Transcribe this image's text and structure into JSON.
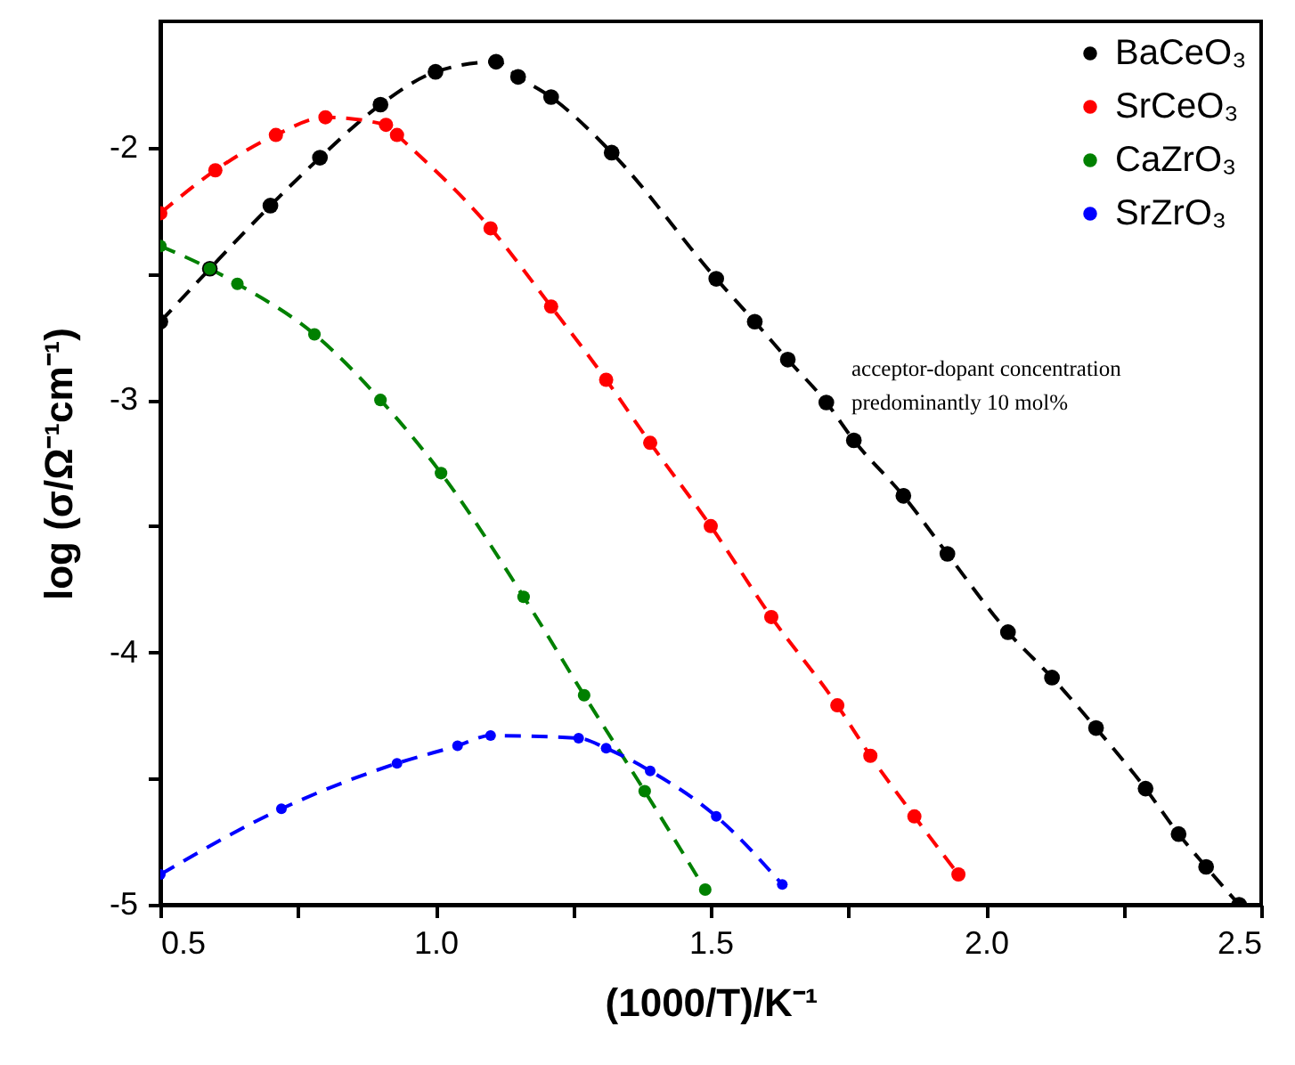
{
  "chart_data": {
    "type": "line",
    "xlabel": "(1000/T)/K⁻¹",
    "ylabel": "log (σ/Ω⁻¹cm⁻¹)",
    "xlim": [
      0.5,
      2.5
    ],
    "ylim": [
      -5,
      -1.5
    ],
    "xticks": [
      0.5,
      {
        "value": 0.75,
        "label": null
      },
      {
        "value": 1,
        "label": "1.0"
      },
      {
        "value": 1.25,
        "label": null
      },
      1.5,
      {
        "value": 1.75,
        "label": null
      },
      {
        "value": 2,
        "label": "2.0"
      },
      {
        "value": 2.25,
        "label": null
      },
      2.5
    ],
    "yticks": [
      -5,
      {
        "value": -4.5,
        "label": null
      },
      -4,
      {
        "value": -3.5,
        "label": null
      },
      -3,
      {
        "value": -2.5,
        "label": null
      },
      -2
    ],
    "marker": "circle",
    "line_style": "dashed",
    "legend": "top right",
    "grid": false,
    "annotations": [
      "acceptor-dopant concentration",
      "predominantly 10 mol%"
    ],
    "series": [
      {
        "name": "BaCeO₃",
        "color": "#000000",
        "x": [
          0.5,
          0.59,
          0.7,
          0.79,
          0.9,
          1.0,
          1.11,
          1.15,
          1.21,
          1.32,
          1.51,
          1.58,
          1.64,
          1.71,
          1.76,
          1.85,
          1.93,
          2.04,
          2.12,
          2.2,
          2.29,
          2.35,
          2.4,
          2.46
        ],
        "values": [
          -2.69,
          -2.48,
          -2.23,
          -2.04,
          -1.83,
          -1.7,
          -1.66,
          -1.72,
          -1.8,
          -2.02,
          -2.52,
          -2.69,
          -2.84,
          -3.01,
          -3.16,
          -3.38,
          -3.61,
          -3.92,
          -4.1,
          -4.3,
          -4.54,
          -4.72,
          -4.85,
          -5.0
        ]
      },
      {
        "name": "SrCeO₃",
        "color": "#ff0000",
        "x": [
          0.5,
          0.6,
          0.71,
          0.8,
          0.91,
          0.93,
          1.1,
          1.21,
          1.31,
          1.39,
          1.5,
          1.61,
          1.73,
          1.79,
          1.87,
          1.95
        ],
        "values": [
          -2.26,
          -2.09,
          -1.95,
          -1.88,
          -1.91,
          -1.95,
          -2.32,
          -2.63,
          -2.92,
          -3.17,
          -3.5,
          -3.86,
          -4.21,
          -4.41,
          -4.65,
          -4.88
        ]
      },
      {
        "name": "CaZrO₃",
        "color": "#008000",
        "x": [
          0.5,
          0.59,
          0.64,
          0.78,
          0.9,
          1.01,
          1.16,
          1.27,
          1.38,
          1.49
        ],
        "values": [
          -2.39,
          -2.48,
          -2.54,
          -2.74,
          -3.0,
          -3.29,
          -3.78,
          -4.17,
          -4.55,
          -4.94
        ]
      },
      {
        "name": "SrZrO₃",
        "color": "#0000ff",
        "x": [
          0.5,
          0.72,
          0.93,
          1.04,
          1.1,
          1.26,
          1.31,
          1.39,
          1.51,
          1.63
        ],
        "values": [
          -4.88,
          -4.62,
          -4.44,
          -4.37,
          -4.33,
          -4.34,
          -4.38,
          -4.47,
          -4.65,
          -4.92
        ]
      }
    ]
  }
}
